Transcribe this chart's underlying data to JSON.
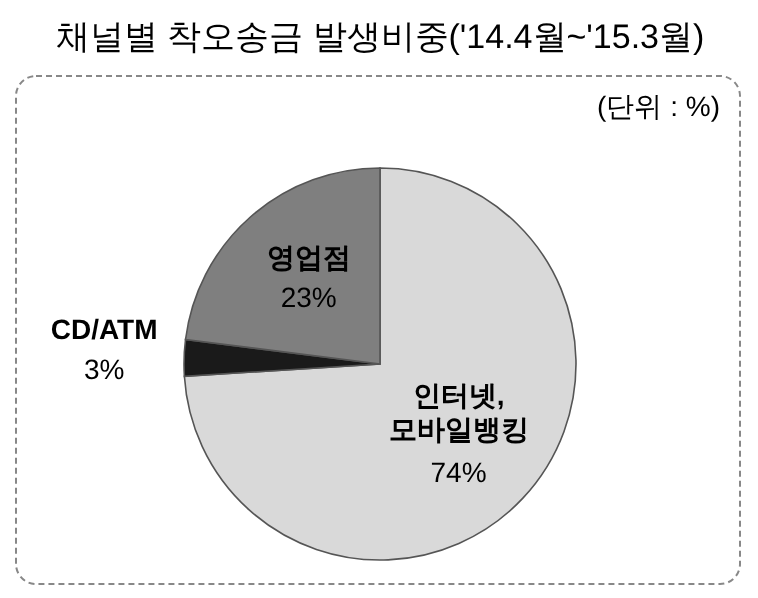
{
  "chart_data": {
    "type": "pie",
    "title": "채널별 착오송금 발생비중('14.4월~'15.3월)",
    "annotations": [
      "(단위 : %)"
    ],
    "categories": [
      "인터넷,\n모바일뱅킹",
      "CD/ATM",
      "영업점"
    ],
    "values": [
      74,
      3,
      23
    ],
    "colors": [
      "#d9d9d9",
      "#1a1a1a",
      "#7f7f7f"
    ],
    "value_labels": [
      "74%",
      "3%",
      "23%"
    ]
  }
}
